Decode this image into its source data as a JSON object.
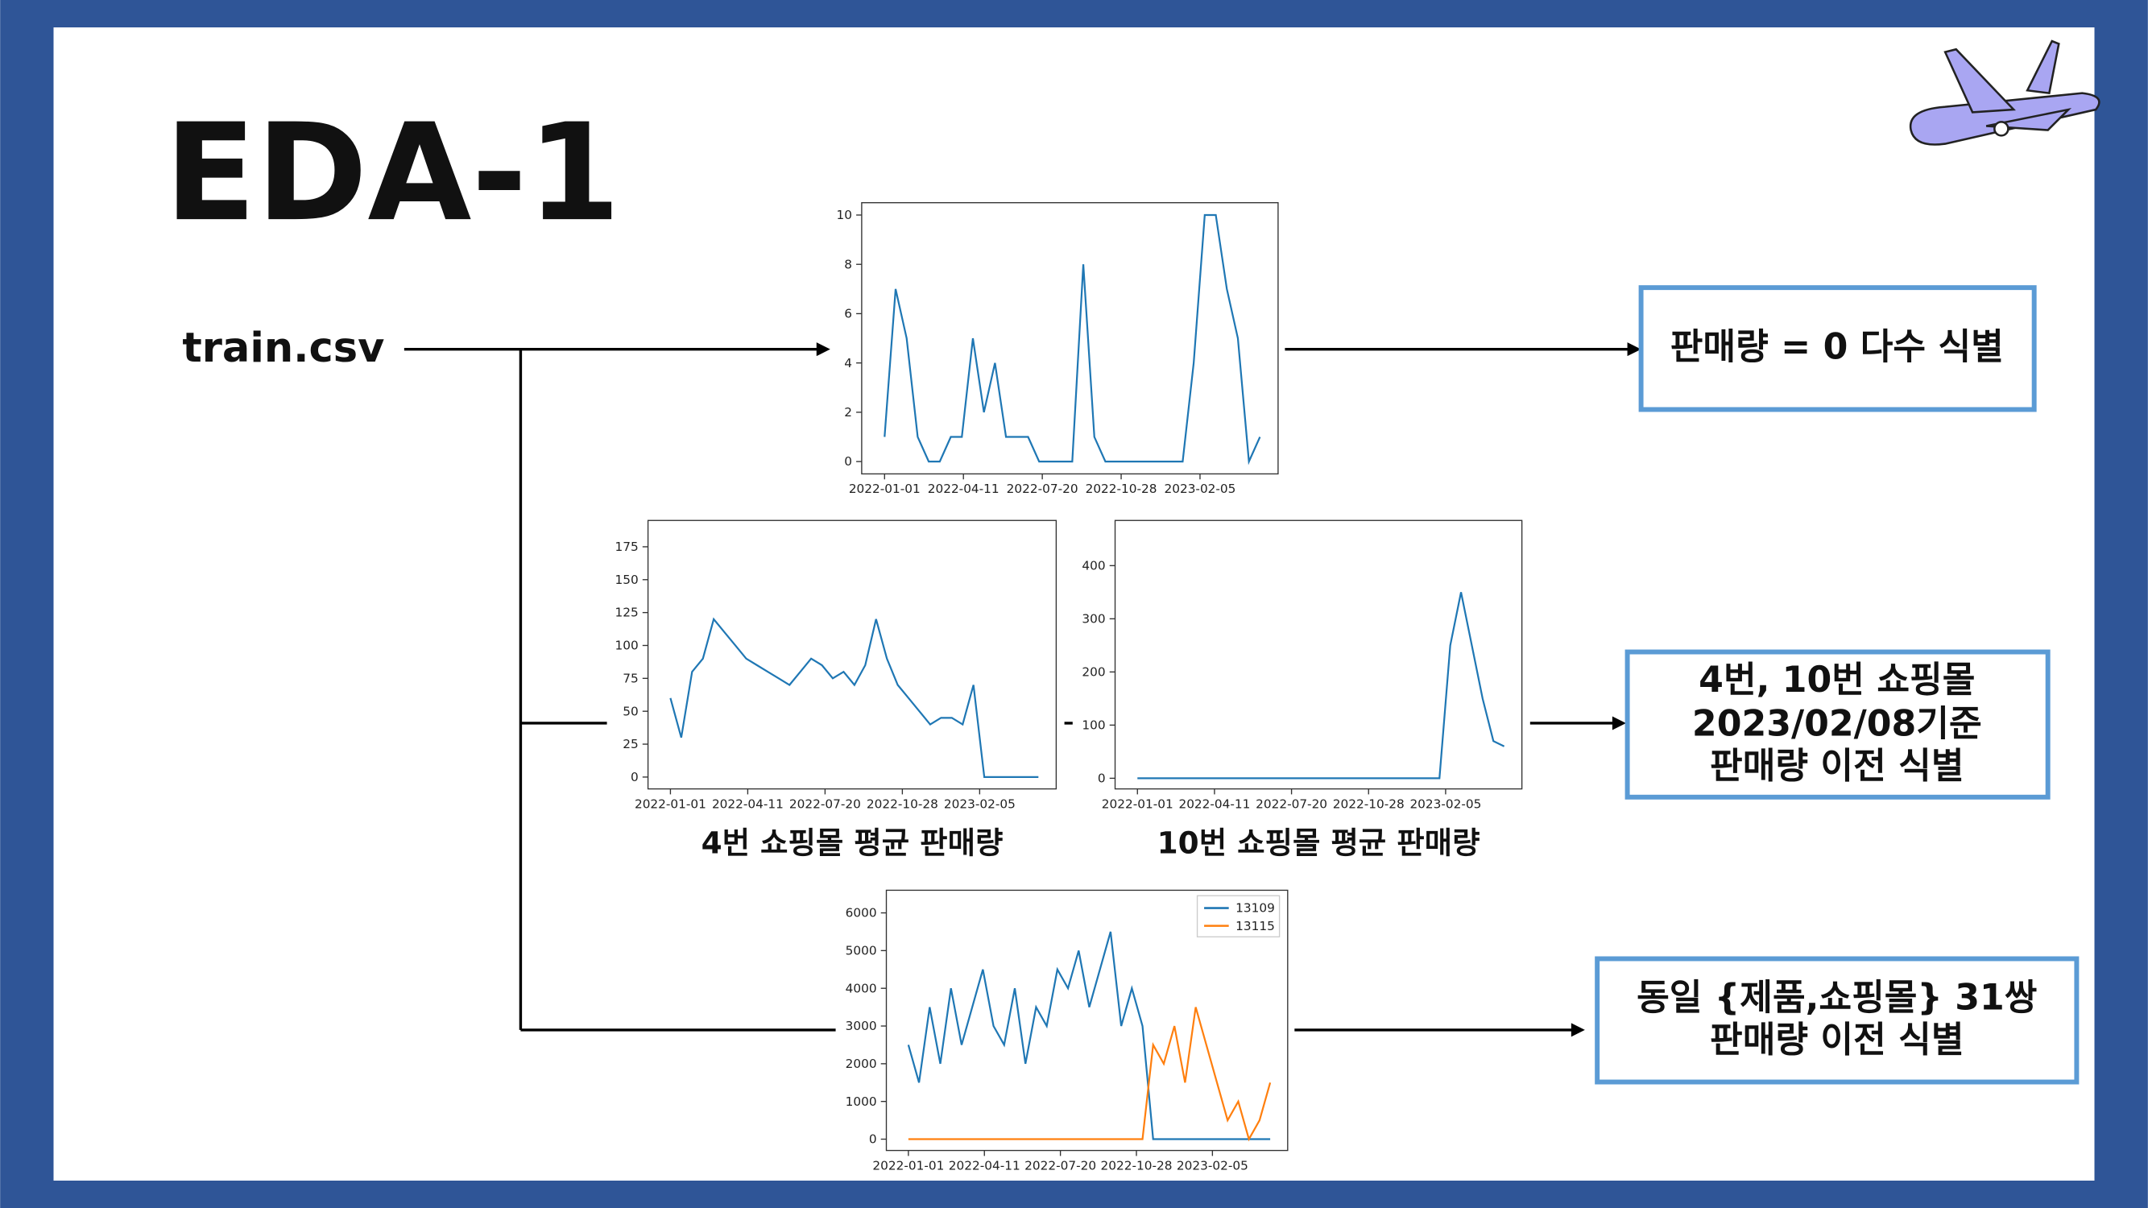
{
  "slide": {
    "title": "EDA-1",
    "source": "train.csv",
    "notes": [
      {
        "lines": [
          "판매량 = 0 다수 식별"
        ]
      },
      {
        "lines": [
          "4번, 10번 쇼핑몰",
          "2023/02/08기준",
          "판매량 이전 식별"
        ]
      },
      {
        "lines": [
          "동일 {제품,쇼핑몰} 31쌍",
          "판매량 이전 식별"
        ]
      }
    ]
  },
  "chart_data": [
    {
      "type": "line",
      "color": "#1f77b4",
      "x": [
        "2022-01-01",
        "2022-01-15",
        "2022-01-29",
        "2022-02-12",
        "2022-02-26",
        "2022-03-12",
        "2022-03-26",
        "2022-04-09",
        "2022-04-23",
        "2022-05-07",
        "2022-05-21",
        "2022-06-04",
        "2022-06-18",
        "2022-07-02",
        "2022-07-16",
        "2022-07-30",
        "2022-08-13",
        "2022-08-27",
        "2022-09-10",
        "2022-09-24",
        "2022-10-08",
        "2022-10-22",
        "2022-11-05",
        "2022-11-19",
        "2022-12-03",
        "2022-12-17",
        "2022-12-31",
        "2023-01-14",
        "2023-01-28",
        "2023-02-11",
        "2023-02-25",
        "2023-03-11",
        "2023-03-25",
        "2023-04-08",
        "2023-04-22"
      ],
      "values": [
        1,
        7,
        5,
        1,
        0,
        0,
        1,
        1,
        5,
        2,
        4,
        1,
        1,
        1,
        0,
        0,
        0,
        0,
        8,
        1,
        0,
        0,
        0,
        0,
        0,
        0,
        0,
        0,
        4,
        10,
        10,
        7,
        5,
        0,
        1
      ],
      "xlim": [
        "2021-12-03",
        "2023-05-15"
      ],
      "xticks": [
        "2022-01-01",
        "2022-04-11",
        "2022-07-20",
        "2022-10-28",
        "2023-02-05"
      ],
      "ylim": [
        -0.5,
        10.5
      ],
      "yticks": [
        0,
        2,
        4,
        6,
        8,
        10
      ]
    },
    {
      "type": "line",
      "title": "4번 쇼핑몰 평균 판매량",
      "color": "#1f77b4",
      "x": [
        "2022-01-01",
        "2022-01-15",
        "2022-01-29",
        "2022-02-12",
        "2022-02-26",
        "2022-03-12",
        "2022-03-26",
        "2022-04-09",
        "2022-04-23",
        "2022-05-07",
        "2022-05-21",
        "2022-06-04",
        "2022-06-18",
        "2022-07-02",
        "2022-07-16",
        "2022-07-30",
        "2022-08-13",
        "2022-08-27",
        "2022-09-10",
        "2022-09-24",
        "2022-10-08",
        "2022-10-22",
        "2022-11-05",
        "2022-11-19",
        "2022-12-03",
        "2022-12-17",
        "2022-12-31",
        "2023-01-14",
        "2023-01-28",
        "2023-02-11",
        "2023-02-25",
        "2023-03-11",
        "2023-03-25",
        "2023-04-08",
        "2023-04-22"
      ],
      "values": [
        60,
        30,
        80,
        90,
        120,
        110,
        100,
        90,
        85,
        80,
        75,
        70,
        80,
        90,
        85,
        75,
        80,
        70,
        85,
        120,
        90,
        70,
        60,
        50,
        40,
        45,
        45,
        40,
        70,
        0,
        0,
        0,
        0,
        0,
        0
      ],
      "xlim": [
        "2021-12-03",
        "2023-05-15"
      ],
      "xticks": [
        "2022-01-01",
        "2022-04-11",
        "2022-07-20",
        "2022-10-28",
        "2023-02-05"
      ],
      "ylim": [
        -9,
        195
      ],
      "yticks": [
        0,
        25,
        50,
        75,
        100,
        125,
        150,
        175
      ]
    },
    {
      "type": "line",
      "title": "10번 쇼핑몰 평균 판매량",
      "color": "#1f77b4",
      "x": [
        "2022-01-01",
        "2022-01-15",
        "2022-01-29",
        "2022-02-12",
        "2022-02-26",
        "2022-03-12",
        "2022-03-26",
        "2022-04-09",
        "2022-04-23",
        "2022-05-07",
        "2022-05-21",
        "2022-06-04",
        "2022-06-18",
        "2022-07-02",
        "2022-07-16",
        "2022-07-30",
        "2022-08-13",
        "2022-08-27",
        "2022-09-10",
        "2022-09-24",
        "2022-10-08",
        "2022-10-22",
        "2022-11-05",
        "2022-11-19",
        "2022-12-03",
        "2022-12-17",
        "2022-12-31",
        "2023-01-14",
        "2023-01-28",
        "2023-02-11",
        "2023-02-25",
        "2023-03-11",
        "2023-03-25",
        "2023-04-08",
        "2023-04-22"
      ],
      "values": [
        0,
        0,
        0,
        0,
        0,
        0,
        0,
        0,
        0,
        0,
        0,
        0,
        0,
        0,
        0,
        0,
        0,
        0,
        0,
        0,
        0,
        0,
        0,
        0,
        0,
        0,
        0,
        0,
        0,
        250,
        350,
        250,
        150,
        70,
        60
      ],
      "xlim": [
        "2021-12-03",
        "2023-05-15"
      ],
      "xticks": [
        "2022-01-01",
        "2022-04-11",
        "2022-07-20",
        "2022-10-28",
        "2023-02-05"
      ],
      "ylim": [
        -20,
        485
      ],
      "yticks": [
        0,
        100,
        200,
        300,
        400
      ]
    },
    {
      "type": "line",
      "legend": "upper right",
      "x": [
        "2022-01-01",
        "2022-01-15",
        "2022-01-29",
        "2022-02-12",
        "2022-02-26",
        "2022-03-12",
        "2022-03-26",
        "2022-04-09",
        "2022-04-23",
        "2022-05-07",
        "2022-05-21",
        "2022-06-04",
        "2022-06-18",
        "2022-07-02",
        "2022-07-16",
        "2022-07-30",
        "2022-08-13",
        "2022-08-27",
        "2022-09-10",
        "2022-09-24",
        "2022-10-08",
        "2022-10-22",
        "2022-11-05",
        "2022-11-19",
        "2022-12-03",
        "2022-12-17",
        "2022-12-31",
        "2023-01-14",
        "2023-01-28",
        "2023-02-11",
        "2023-02-25",
        "2023-03-11",
        "2023-03-25",
        "2023-04-08",
        "2023-04-22"
      ],
      "series": [
        {
          "name": "13109",
          "color": "#1f77b4",
          "values": [
            2500,
            1500,
            3500,
            2000,
            4000,
            2500,
            3500,
            4500,
            3000,
            2500,
            4000,
            2000,
            3500,
            3000,
            4500,
            4000,
            5000,
            3500,
            4500,
            5500,
            3000,
            4000,
            3000,
            0,
            0,
            0,
            0,
            0,
            0,
            0,
            0,
            0,
            0,
            0,
            0
          ]
        },
        {
          "name": "13115",
          "color": "#ff7f0e",
          "values": [
            0,
            0,
            0,
            0,
            0,
            0,
            0,
            0,
            0,
            0,
            0,
            0,
            0,
            0,
            0,
            0,
            0,
            0,
            0,
            0,
            0,
            0,
            0,
            2500,
            2000,
            3000,
            1500,
            3500,
            2500,
            1500,
            500,
            1000,
            0,
            500,
            1500
          ]
        }
      ],
      "xlim": [
        "2021-12-03",
        "2023-05-15"
      ],
      "xticks": [
        "2022-01-01",
        "2022-04-11",
        "2022-07-20",
        "2022-10-28",
        "2023-02-05"
      ],
      "ylim": [
        -300,
        6600
      ],
      "yticks": [
        0,
        1000,
        2000,
        3000,
        4000,
        5000,
        6000
      ]
    }
  ]
}
